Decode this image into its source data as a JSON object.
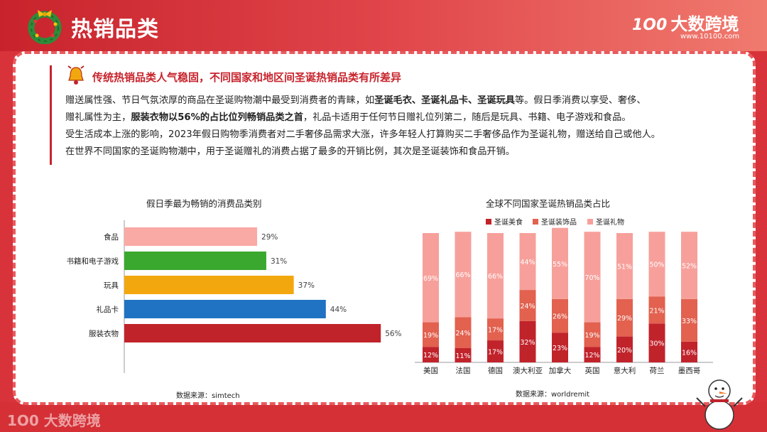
{
  "header": {
    "title": "热销品类",
    "logo_mark": "1O0",
    "logo_text": "大数跨境",
    "logo_url": "www.10100.com"
  },
  "section": {
    "subtitle": "传统热销品类人气稳固，不同国家和地区间圣诞热销品类有所差异",
    "p1_a": "赠送属性强、节日气氛浓厚的商品在圣诞购物潮中最受到消费者的青睐，如",
    "p1_b": "圣诞毛衣、圣诞礼品卡、圣诞玩具",
    "p1_c": "等。假日季消费以享受、奢侈、",
    "p2_a": "赠礼属性为主，",
    "p2_b": "服装衣物以56%的占比位列畅销品类之首",
    "p2_c": "，礼品卡适用于任何节日赠礼位列第二，随后是玩具、书籍、电子游戏和食品。",
    "p3": "受生活成本上涨的影响，2023年假日购物季消费者对二手奢侈品需求大涨，许多年轻人打算购买二手奢侈品作为圣诞礼物，赠送给自己或他人。",
    "p4": "在世界不同国家的圣诞购物潮中，用于圣诞赠礼的消费占据了最多的开销比例，其次是圣诞装饰和食品开销。"
  },
  "watermark": "1O0 大数跨境",
  "chart_data": [
    {
      "type": "bar",
      "orientation": "horizontal",
      "title": "假日季最为畅销的消费品类别",
      "source": "数据来源：simtech",
      "categories": [
        "食品",
        "书籍和电子游戏",
        "玩具",
        "礼品卡",
        "服装衣物"
      ],
      "values": [
        29,
        31,
        37,
        44,
        56
      ],
      "value_labels": [
        "29%",
        "31%",
        "37%",
        "44%",
        "56%"
      ],
      "colors": [
        "#f9aaa4",
        "#3aa82f",
        "#f3a70f",
        "#1f73c2",
        "#c1232b"
      ],
      "unit": "%"
    },
    {
      "type": "bar",
      "stacked": true,
      "title": "全球不同国家圣诞热销品类占比",
      "source": "数据来源：worldremit",
      "categories": [
        "美国",
        "法国",
        "德国",
        "澳大利亚",
        "加拿大",
        "英国",
        "意大利",
        "荷兰",
        "墨西哥"
      ],
      "series": [
        {
          "name": "圣诞美食",
          "color": "#c1232b",
          "values": [
            12,
            11,
            17,
            32,
            23,
            12,
            20,
            30,
            16
          ]
        },
        {
          "name": "圣诞装饰品",
          "color": "#e2614f",
          "values": [
            19,
            24,
            17,
            24,
            26,
            19,
            29,
            21,
            33
          ]
        },
        {
          "name": "圣诞礼物",
          "color": "#f7a09b",
          "values": [
            69,
            66,
            66,
            44,
            55,
            70,
            51,
            50,
            52
          ]
        }
      ],
      "ylim": [
        0,
        100
      ],
      "unit": "%",
      "legend": "top"
    }
  ]
}
